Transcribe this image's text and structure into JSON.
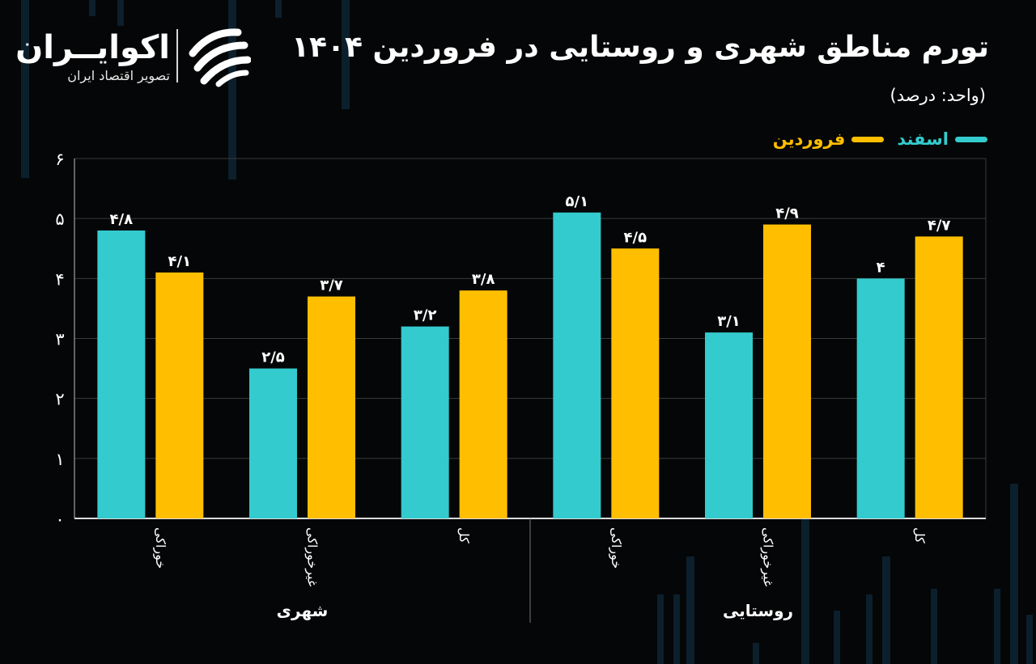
{
  "brand": {
    "name": "اکوایــران",
    "tagline": "تصویر اقتصاد ایران"
  },
  "header": {
    "title": "تورم مناطق شهری و روستایی در فروردین ۱۴۰۴",
    "unit": "(واحد: درصد)"
  },
  "legend": {
    "series_1": "اسفند",
    "series_2": "فروردین"
  },
  "colors": {
    "background": "#050607",
    "esfand": "#33CBCE",
    "farvardin": "#FFBF00",
    "grid": "#3a3a3a",
    "text": "#ffffff"
  },
  "chart_data": {
    "type": "bar",
    "title": "تورم مناطق شهری و روستایی در فروردین ۱۴۰۴",
    "ylabel": "(واحد: درصد)",
    "xlabel": "",
    "ylim": [
      0,
      6
    ],
    "yticks": [
      0,
      1,
      2,
      3,
      4,
      5,
      6
    ],
    "ytick_labels": [
      "۰",
      "۱",
      "۲",
      "۳",
      "۴",
      "۵",
      "۶"
    ],
    "grid": true,
    "legend_position": "top-right",
    "groups": [
      {
        "name": "شهری",
        "categories": [
          "خوراکی",
          "غیرخوراکی",
          "کل"
        ]
      },
      {
        "name": "روستایی",
        "categories": [
          "خوراکی",
          "غیرخوراکی",
          "کل"
        ]
      }
    ],
    "categories": [
      "خوراکی",
      "غیرخوراکی",
      "کل",
      "خوراکی",
      "غیرخوراکی",
      "کل"
    ],
    "series": [
      {
        "name": "اسفند",
        "values": [
          4.8,
          2.5,
          3.2,
          5.1,
          3.1,
          4.0
        ],
        "labels": [
          "۴/۸",
          "۲/۵",
          "۳/۲",
          "۵/۱",
          "۳/۱",
          "۴"
        ]
      },
      {
        "name": "فروردین",
        "values": [
          4.1,
          3.7,
          3.8,
          4.5,
          4.9,
          4.7
        ],
        "labels": [
          "۴/۱",
          "۳/۷",
          "۳/۸",
          "۴/۵",
          "۴/۹",
          "۴/۷"
        ]
      }
    ]
  }
}
